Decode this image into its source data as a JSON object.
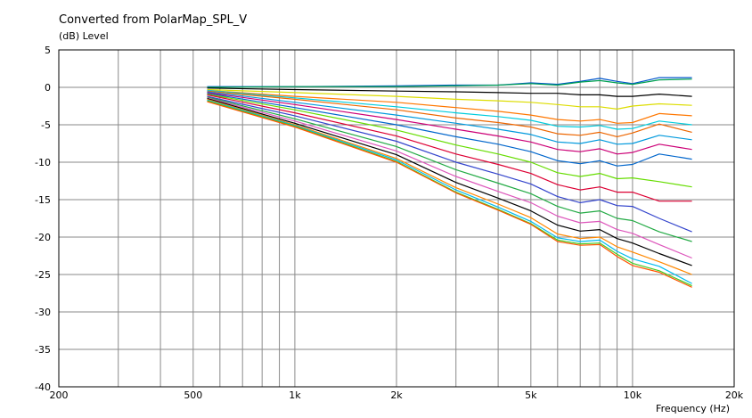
{
  "chart_data": {
    "type": "line",
    "title": "Converted from PolarMap_SPL_V",
    "ylabel": "(dB)  Level",
    "xlabel": "Frequency  (Hz)",
    "x_scale": "log",
    "xlim": [
      200,
      20000
    ],
    "ylim": [
      -40,
      5
    ],
    "grid": true,
    "legend": "none",
    "x_ticks": [
      {
        "value": 200,
        "label": "200"
      },
      {
        "value": 500,
        "label": "500"
      },
      {
        "value": 1000,
        "label": "1k"
      },
      {
        "value": 2000,
        "label": "2k"
      },
      {
        "value": 5000,
        "label": "5k"
      },
      {
        "value": 10000,
        "label": "10k"
      },
      {
        "value": 20000,
        "label": "20k"
      }
    ],
    "y_ticks": [
      {
        "value": 5,
        "label": "5"
      },
      {
        "value": 0,
        "label": "0"
      },
      {
        "value": -5,
        "label": "-5"
      },
      {
        "value": -10,
        "label": "-10"
      },
      {
        "value": -15,
        "label": "-15"
      },
      {
        "value": -20,
        "label": "-20"
      },
      {
        "value": -25,
        "label": "-25"
      },
      {
        "value": -30,
        "label": "-30"
      },
      {
        "value": -35,
        "label": "-35"
      },
      {
        "value": -40,
        "label": "-40"
      }
    ],
    "x": [
      550,
      1000,
      2000,
      3000,
      4000,
      5000,
      6000,
      7000,
      8000,
      9000,
      10000,
      12000,
      15000
    ],
    "series": [
      {
        "color": "#0055cc",
        "values": [
          0.1,
          0.1,
          0.2,
          0.3,
          0.3,
          0.6,
          0.4,
          0.8,
          1.2,
          0.8,
          0.5,
          1.3,
          1.3
        ]
      },
      {
        "color": "#00a050",
        "values": [
          0.0,
          0.1,
          0.1,
          0.2,
          0.3,
          0.5,
          0.3,
          0.7,
          0.9,
          0.6,
          0.4,
          1.0,
          1.1
        ]
      },
      {
        "color": "#000000",
        "values": [
          -0.1,
          -0.3,
          -0.5,
          -0.6,
          -0.7,
          -0.8,
          -0.8,
          -1.0,
          -1.0,
          -1.2,
          -1.2,
          -0.9,
          -1.2
        ]
      },
      {
        "color": "#dddd00",
        "values": [
          -0.3,
          -0.7,
          -1.2,
          -1.6,
          -1.8,
          -2.0,
          -2.3,
          -2.6,
          -2.6,
          -2.9,
          -2.5,
          -2.2,
          -2.4
        ]
      },
      {
        "color": "#ff7700",
        "values": [
          -0.4,
          -1.2,
          -2.0,
          -2.7,
          -3.2,
          -3.7,
          -4.3,
          -4.5,
          -4.3,
          -4.8,
          -4.7,
          -3.5,
          -3.8
        ]
      },
      {
        "color": "#00ccdd",
        "values": [
          -0.4,
          -1.4,
          -2.6,
          -3.4,
          -3.9,
          -4.4,
          -5.2,
          -5.3,
          -5.1,
          -5.6,
          -5.5,
          -4.5,
          -5.0
        ]
      },
      {
        "color": "#ee6600",
        "values": [
          -0.5,
          -1.6,
          -3.0,
          -4.1,
          -4.7,
          -5.3,
          -6.2,
          -6.4,
          -6.0,
          -6.6,
          -6.1,
          -4.9,
          -6.0
        ]
      },
      {
        "color": "#0099dd",
        "values": [
          -0.6,
          -2.0,
          -3.7,
          -4.8,
          -5.6,
          -6.3,
          -7.3,
          -7.5,
          -7.0,
          -7.6,
          -7.5,
          -6.4,
          -7.0
        ]
      },
      {
        "color": "#cc0077",
        "values": [
          -0.7,
          -2.3,
          -4.3,
          -5.6,
          -6.5,
          -7.3,
          -8.3,
          -8.6,
          -8.2,
          -8.9,
          -8.7,
          -7.6,
          -8.3
        ]
      },
      {
        "color": "#0066cc",
        "values": [
          -0.8,
          -2.7,
          -5.0,
          -6.6,
          -7.6,
          -8.6,
          -9.8,
          -10.2,
          -9.8,
          -10.5,
          -10.3,
          -8.9,
          -9.6
        ]
      },
      {
        "color": "#66dd00",
        "values": [
          -0.9,
          -3.0,
          -5.7,
          -7.7,
          -8.9,
          -10.0,
          -11.4,
          -11.9,
          -11.5,
          -12.2,
          -12.1,
          -12.6,
          -13.3
        ]
      },
      {
        "color": "#dd0033",
        "values": [
          -1.0,
          -3.4,
          -6.5,
          -8.9,
          -10.3,
          -11.5,
          -13.0,
          -13.7,
          -13.3,
          -14.0,
          -14.0,
          -15.2,
          -15.2
        ]
      },
      {
        "color": "#3344cc",
        "values": [
          -1.2,
          -3.8,
          -7.2,
          -10.0,
          -11.6,
          -12.9,
          -14.6,
          -15.4,
          -15.0,
          -15.8,
          -15.9,
          -17.5,
          -19.3
        ]
      },
      {
        "color": "#22aa44",
        "values": [
          -1.3,
          -4.2,
          -7.9,
          -11.0,
          -12.8,
          -14.2,
          -15.9,
          -16.8,
          -16.5,
          -17.5,
          -17.8,
          -19.3,
          -20.6
        ]
      },
      {
        "color": "#dd55bb",
        "values": [
          -1.4,
          -4.5,
          -8.5,
          -11.9,
          -13.9,
          -15.4,
          -17.2,
          -18.1,
          -17.9,
          -19.0,
          -19.5,
          -21.0,
          -22.8
        ]
      },
      {
        "color": "#000000",
        "values": [
          -1.5,
          -4.8,
          -9.0,
          -12.7,
          -14.8,
          -16.5,
          -18.4,
          -19.2,
          -19.0,
          -20.2,
          -20.8,
          -22.2,
          -23.8
        ]
      },
      {
        "color": "#ff8800",
        "values": [
          -1.6,
          -5.0,
          -9.5,
          -13.4,
          -15.6,
          -17.4,
          -19.6,
          -20.2,
          -20.0,
          -21.3,
          -22.0,
          -23.3,
          -25.0
        ]
      },
      {
        "color": "#00bbee",
        "values": [
          -1.7,
          -5.1,
          -9.7,
          -13.7,
          -16.0,
          -17.9,
          -20.1,
          -20.6,
          -20.4,
          -21.9,
          -22.9,
          -23.9,
          -26.2
        ]
      },
      {
        "color": "#44cc22",
        "values": [
          -1.8,
          -5.2,
          -9.9,
          -14.0,
          -16.3,
          -18.2,
          -20.4,
          -20.9,
          -20.8,
          -22.3,
          -23.5,
          -24.5,
          -26.5
        ]
      },
      {
        "color": "#ff5500",
        "values": [
          -1.9,
          -5.3,
          -10.0,
          -14.1,
          -16.4,
          -18.3,
          -20.6,
          -21.1,
          -21.0,
          -22.6,
          -23.8,
          -24.7,
          -26.7
        ]
      }
    ]
  }
}
